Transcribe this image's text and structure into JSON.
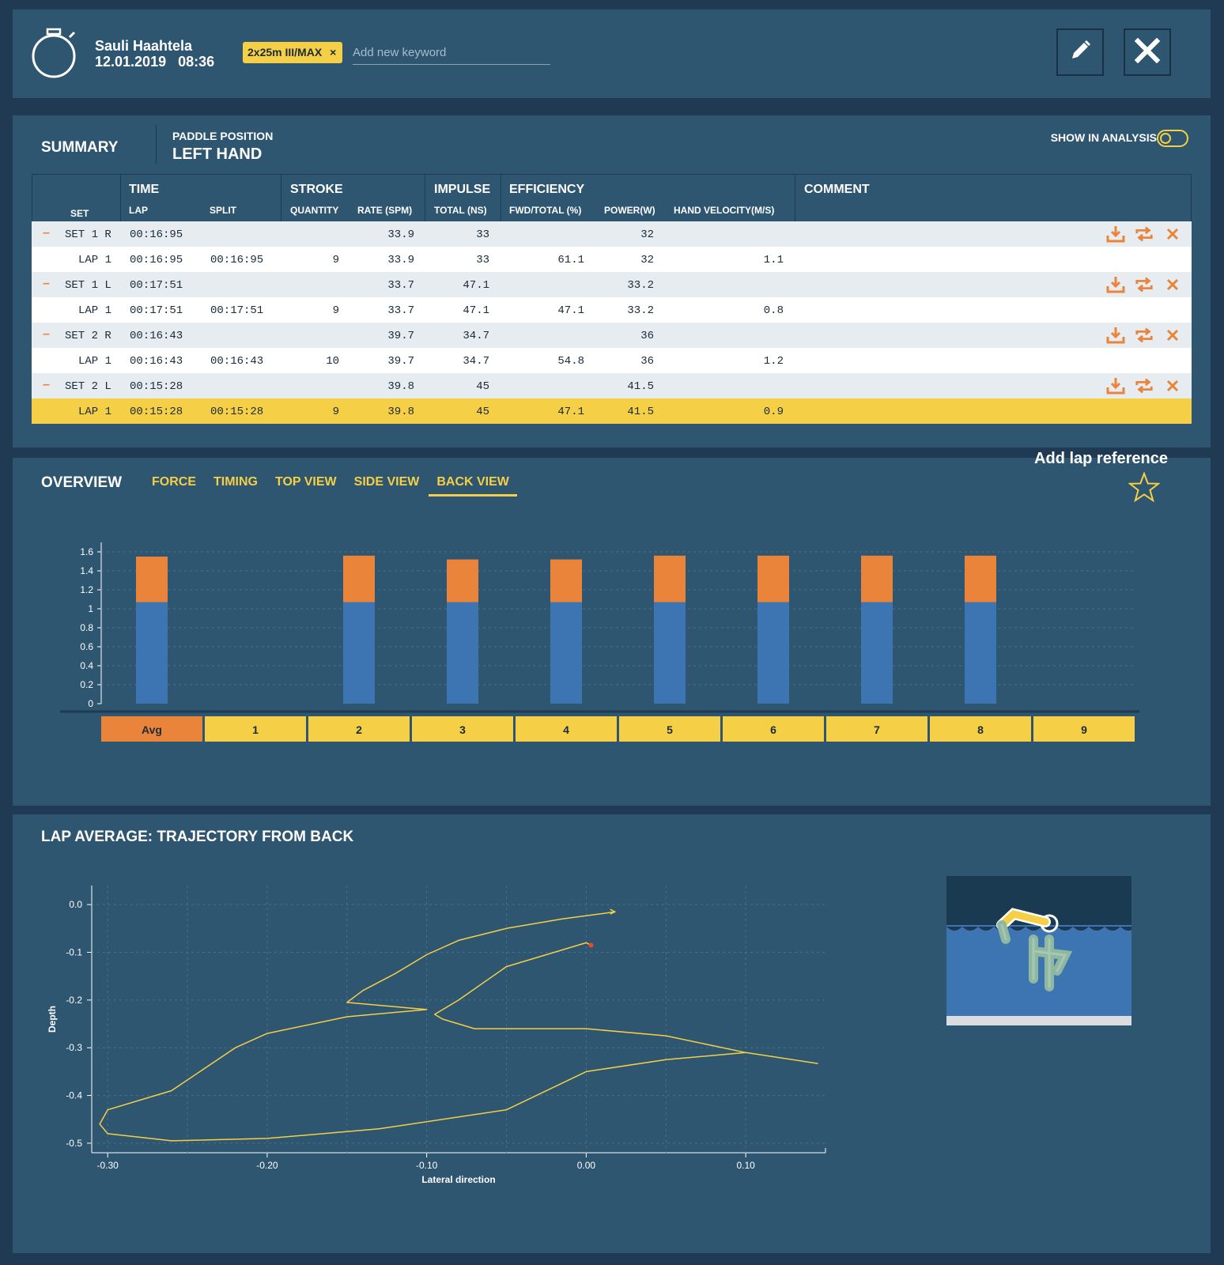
{
  "header": {
    "user_name": "Sauli Haahtela",
    "date": "12.01.2019",
    "time": "08:36",
    "keyword_tag": "2x25m III/MAX",
    "keyword_remove": "×",
    "keyword_placeholder": "Add new keyword",
    "icons": [
      "stopwatch-icon",
      "pencil-icon",
      "close-icon"
    ]
  },
  "summary": {
    "title": "SUMMARY",
    "paddle_position_label": "PADDLE POSITION",
    "paddle_position_value": "LEFT HAND",
    "show_in_analysis_label": "SHOW IN ANALYSIS",
    "show_in_analysis_on": false,
    "columns": {
      "set": "SET",
      "time": "TIME",
      "lap": "LAP",
      "split": "SPLIT",
      "stroke": "STROKE",
      "quantity": "QUANTITY",
      "rate": "RATE (SPM)",
      "impulse": "IMPULSE",
      "total": "TOTAL (NS)",
      "efficiency": "EFFICIENCY",
      "fwd_total": "FWD/TOTAL (%)",
      "power": "POWER(W)",
      "hand_velocity": "HAND VELOCITY(M/S)",
      "comment": "COMMENT"
    },
    "rows": [
      {
        "kind": "set",
        "set": "SET 1 R",
        "time": "00:16:95",
        "split": "",
        "quantity": "",
        "rate": "33.9",
        "total": "33",
        "fwd": "",
        "power": "32",
        "velocity": "",
        "icons": [
          "download-icon",
          "swap-icon",
          "delete-icon"
        ]
      },
      {
        "kind": "lap",
        "set": "LAP 1",
        "time": "00:16:95",
        "split": "00:16:95",
        "quantity": "9",
        "rate": "33.9",
        "total": "33",
        "fwd": "61.1",
        "power": "32",
        "velocity": "1.1"
      },
      {
        "kind": "set",
        "set": "SET 1 L",
        "time": "00:17:51",
        "split": "",
        "quantity": "",
        "rate": "33.7",
        "total": "47.1",
        "fwd": "",
        "power": "33.2",
        "velocity": "",
        "icons": [
          "download-icon",
          "swap-icon",
          "delete-icon"
        ]
      },
      {
        "kind": "lap",
        "set": "LAP 1",
        "time": "00:17:51",
        "split": "00:17:51",
        "quantity": "9",
        "rate": "33.7",
        "total": "47.1",
        "fwd": "47.1",
        "power": "33.2",
        "velocity": "0.8"
      },
      {
        "kind": "set",
        "set": "SET 2 R",
        "time": "00:16:43",
        "split": "",
        "quantity": "",
        "rate": "39.7",
        "total": "34.7",
        "fwd": "",
        "power": "36",
        "velocity": "",
        "icons": [
          "download-icon",
          "swap-icon",
          "delete-icon"
        ]
      },
      {
        "kind": "lap",
        "set": "LAP 1",
        "time": "00:16:43",
        "split": "00:16:43",
        "quantity": "10",
        "rate": "39.7",
        "total": "34.7",
        "fwd": "54.8",
        "power": "36",
        "velocity": "1.2"
      },
      {
        "kind": "set",
        "set": "SET 2 L",
        "time": "00:15:28",
        "split": "",
        "quantity": "",
        "rate": "39.8",
        "total": "45",
        "fwd": "",
        "power": "41.5",
        "velocity": "",
        "icons": [
          "download-icon",
          "swap-icon",
          "delete-icon"
        ]
      },
      {
        "kind": "lap",
        "set": "LAP 1",
        "time": "00:15:28",
        "split": "00:15:28",
        "quantity": "9",
        "rate": "39.8",
        "total": "45",
        "fwd": "47.1",
        "power": "41.5",
        "velocity": "0.9",
        "selected": true
      }
    ],
    "collapse_symbol": "–"
  },
  "overview": {
    "title": "OVERVIEW",
    "tabs": [
      "FORCE",
      "TIMING",
      "TOP VIEW",
      "SIDE VIEW",
      "BACK VIEW"
    ],
    "active_tab": "BACK VIEW",
    "add_lap_reference": "Add lap reference",
    "star_icon": "star-icon"
  },
  "lap_average": {
    "title": "LAP AVERAGE: TRAJECTORY FROM BACK",
    "diagram_icon": "swimmer-back-view-icon"
  },
  "chart_data": [
    {
      "type": "bar",
      "stacked": true,
      "categories": [
        "Avg",
        "1",
        "2",
        "3",
        "4",
        "5",
        "6",
        "7",
        "8",
        "9"
      ],
      "series": [
        {
          "color": "#3d74b2",
          "values": [
            1.07,
            null,
            1.07,
            1.07,
            1.07,
            1.07,
            1.07,
            1.07,
            1.07,
            null
          ]
        },
        {
          "color": "#e9843a",
          "values": [
            0.48,
            null,
            0.49,
            0.45,
            0.45,
            0.49,
            0.49,
            0.49,
            0.49,
            null
          ]
        }
      ],
      "ylim": [
        0,
        1.6
      ],
      "yticks": [
        "0",
        "0.2",
        "0.4",
        "0.6",
        "0.8",
        "1",
        "1.2",
        "1.4",
        "1.6"
      ],
      "grid": true
    },
    {
      "type": "line",
      "xlabel": "Lateral direction",
      "ylabel": "Depth",
      "xlim": [
        -0.31,
        0.15
      ],
      "ylim": [
        -0.52,
        0.04
      ],
      "xticks": [
        "-0.30",
        "-0.20",
        "-0.10",
        "0.00",
        "0.10"
      ],
      "yticks": [
        "0.0",
        "-0.1",
        "-0.2",
        "-0.3",
        "-0.4",
        "-0.5"
      ],
      "grid": true,
      "line_color": "#f5cf45",
      "marker_color": "#e94a2a",
      "series": [
        {
          "points": [
            [
              0.018,
              -0.015
            ],
            [
              0.012,
              -0.018
            ],
            [
              -0.015,
              -0.03
            ],
            [
              -0.05,
              -0.05
            ],
            [
              -0.08,
              -0.075
            ],
            [
              -0.1,
              -0.105
            ],
            [
              -0.12,
              -0.145
            ],
            [
              -0.14,
              -0.18
            ],
            [
              -0.15,
              -0.205
            ],
            [
              -0.1,
              -0.22
            ],
            [
              -0.15,
              -0.235
            ],
            [
              -0.2,
              -0.27
            ],
            [
              -0.22,
              -0.3
            ],
            [
              -0.26,
              -0.39
            ],
            [
              -0.3,
              -0.43
            ],
            [
              -0.305,
              -0.46
            ],
            [
              -0.3,
              -0.48
            ],
            [
              -0.26,
              -0.495
            ],
            [
              -0.2,
              -0.49
            ],
            [
              -0.13,
              -0.47
            ],
            [
              -0.05,
              -0.43
            ],
            [
              0.0,
              -0.35
            ],
            [
              0.05,
              -0.325
            ],
            [
              0.1,
              -0.31
            ],
            [
              0.145,
              -0.333
            ],
            [
              0.1,
              -0.31
            ],
            [
              0.05,
              -0.275
            ],
            [
              0.0,
              -0.26
            ],
            [
              -0.07,
              -0.26
            ],
            [
              -0.09,
              -0.24
            ],
            [
              -0.095,
              -0.23
            ],
            [
              -0.08,
              -0.2
            ],
            [
              -0.05,
              -0.13
            ],
            [
              0.0,
              -0.08
            ],
            [
              0.003,
              -0.085
            ]
          ]
        }
      ]
    }
  ]
}
